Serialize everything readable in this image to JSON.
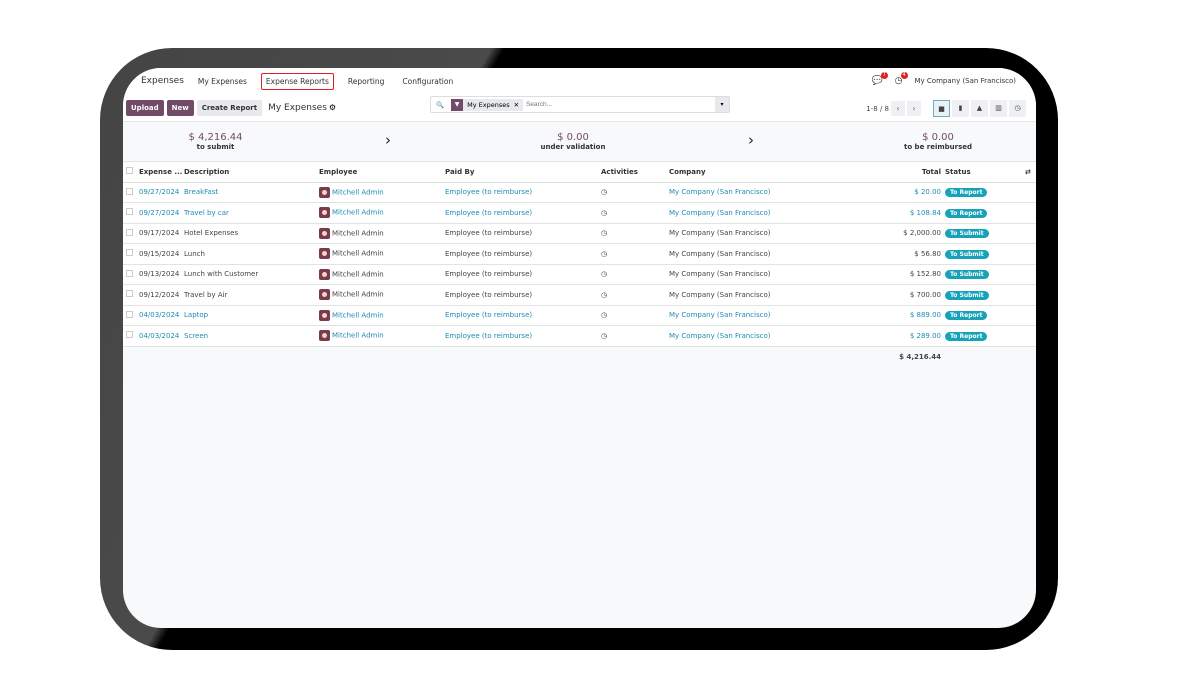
{
  "nav": {
    "app": "Expenses",
    "items": [
      "My Expenses",
      "Expense Reports",
      "Reporting",
      "Configuration"
    ],
    "highlighted": "Expense Reports",
    "messages_count": "7",
    "activities_count": "4",
    "company": "My Company (San Francisco)"
  },
  "toolbar": {
    "upload": "Upload",
    "new": "New",
    "create_report": "Create Report",
    "title": "My Expenses",
    "filter_facet": "My Expenses",
    "search_placeholder": "Search...",
    "pager": "1-8 / 8"
  },
  "summary": [
    {
      "value": "$ 4,216.44",
      "label": "to submit"
    },
    {
      "value": "$ 0.00",
      "label": "under validation"
    },
    {
      "value": "$ 0.00",
      "label": "to be reimbursed"
    }
  ],
  "table": {
    "headers": [
      "Expense ...",
      "Description",
      "Employee",
      "Paid By",
      "Activities",
      "Company",
      "Total",
      "Status"
    ],
    "rows": [
      {
        "date": "09/27/2024",
        "desc": "BreakFast",
        "employee": "Mitchell Admin",
        "paid_by": "Employee (to reimburse)",
        "company": "My Company (San Francisco)",
        "total": "$ 20.00",
        "status": "To Report"
      },
      {
        "date": "09/27/2024",
        "desc": "Travel by car",
        "employee": "Mitchell Admin",
        "paid_by": "Employee (to reimburse)",
        "company": "My Company (San Francisco)",
        "total": "$ 108.84",
        "status": "To Report"
      },
      {
        "date": "09/17/2024",
        "desc": "Hotel Expenses",
        "employee": "Mitchell Admin",
        "paid_by": "Employee (to reimburse)",
        "company": "My Company (San Francisco)",
        "total": "$ 2,000.00",
        "status": "To Submit"
      },
      {
        "date": "09/15/2024",
        "desc": "Lunch",
        "employee": "Mitchell Admin",
        "paid_by": "Employee (to reimburse)",
        "company": "My Company (San Francisco)",
        "total": "$ 56.80",
        "status": "To Submit"
      },
      {
        "date": "09/13/2024",
        "desc": "Lunch with Customer",
        "employee": "Mitchell Admin",
        "paid_by": "Employee (to reimburse)",
        "company": "My Company (San Francisco)",
        "total": "$ 152.80",
        "status": "To Submit"
      },
      {
        "date": "09/12/2024",
        "desc": "Travel by Air",
        "employee": "Mitchell Admin",
        "paid_by": "Employee (to reimburse)",
        "company": "My Company (San Francisco)",
        "total": "$ 700.00",
        "status": "To Submit"
      },
      {
        "date": "04/03/2024",
        "desc": "Laptop",
        "employee": "Mitchell Admin",
        "paid_by": "Employee (to reimburse)",
        "company": "My Company (San Francisco)",
        "total": "$ 889.00",
        "status": "To Report"
      },
      {
        "date": "04/03/2024",
        "desc": "Screen",
        "employee": "Mitchell Admin",
        "paid_by": "Employee (to reimburse)",
        "company": "My Company (San Francisco)",
        "total": "$ 289.00",
        "status": "To Report"
      }
    ],
    "grand_total": "$ 4,216.44"
  }
}
